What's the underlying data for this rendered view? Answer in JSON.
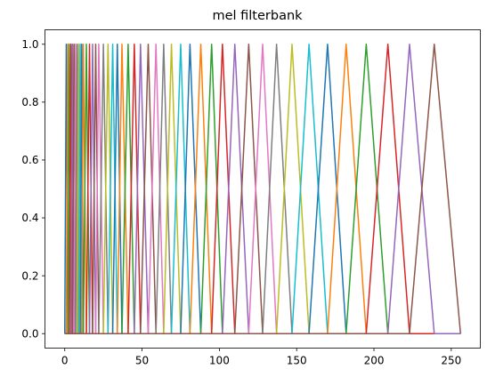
{
  "chart_data": {
    "type": "line",
    "title": "mel filterbank",
    "xlabel": "",
    "ylabel": "",
    "xlim": [
      -12.8,
      268.8
    ],
    "ylim": [
      -0.05,
      1.05
    ],
    "x_ticks": [
      0,
      50,
      100,
      150,
      200,
      250
    ],
    "y_ticks": [
      0.0,
      0.2,
      0.4,
      0.6,
      0.8,
      1.0
    ],
    "x_tick_labels": [
      "0",
      "50",
      "100",
      "150",
      "200",
      "250"
    ],
    "y_tick_labels": [
      "0.0",
      "0.2",
      "0.4",
      "0.6",
      "0.8",
      "1.0"
    ],
    "grid": false,
    "legend": "none",
    "x_max_bin": 256,
    "filter_peak_height": 1.0,
    "filter_edges": [
      0,
      1,
      2,
      3,
      4,
      5,
      6,
      7,
      8,
      9,
      10,
      11,
      12,
      14,
      16,
      18,
      20,
      22,
      25,
      28,
      31,
      34,
      37,
      41,
      45,
      49,
      54,
      59,
      64,
      69,
      75,
      81,
      88,
      95,
      102,
      110,
      119,
      128,
      137,
      147,
      158,
      170,
      182,
      195,
      209,
      223,
      239,
      256
    ],
    "color_cycle": [
      "#1f77b4",
      "#ff7f0e",
      "#2ca02c",
      "#d62728",
      "#9467bd",
      "#8c564b",
      "#e377c2",
      "#7f7f7f",
      "#bcbd22",
      "#17becf"
    ]
  }
}
